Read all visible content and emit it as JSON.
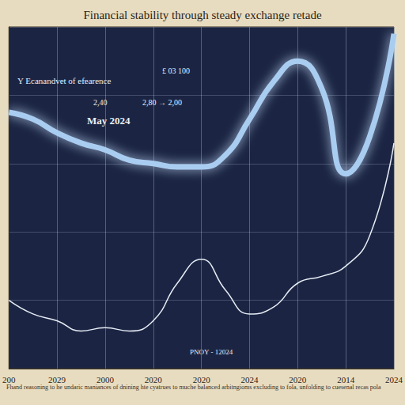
{
  "chart_data": {
    "type": "line",
    "title": "Financial stability through steady exchange retade",
    "annotations": [
      "Y Ecanandvet of efearence",
      "£ 03 100",
      "May 2024",
      "2,40",
      "2,80 → 2,00",
      "PNOY - 12024"
    ],
    "caption": "Fhand reasoning to he undaric maniances of dnining hte cyatrues to muche balanced arbitngioms excluding to fola, unfolding to cuesenal recas pola",
    "categories": [
      "200",
      null,
      "2029",
      null,
      "2000",
      null,
      "2020",
      null,
      "2020",
      null,
      "2024",
      null,
      "2020",
      null,
      "2014",
      null,
      "2024"
    ],
    "series": [
      {
        "color": "#a9cdf0",
        "line_style": "solid",
        "values": [
          7.5,
          7.3,
          6.9,
          6.6,
          6.4,
          6.1,
          6.0,
          5.9,
          5.9,
          6.25,
          7.3,
          8.4,
          9.0,
          8.2,
          5.7,
          6.8,
          9.8
        ]
      },
      {
        "color": "#e6ecf5",
        "line_style": "solid",
        "values": [
          2.0,
          1.6,
          1.4,
          1.1,
          1.2,
          1.1,
          1.4,
          2.5,
          3.2,
          2.3,
          1.6,
          1.8,
          2.5,
          2.7,
          3.0,
          3.9,
          6.6
        ]
      }
    ],
    "ylim": [
      0,
      10
    ],
    "yticks": [
      0,
      2,
      4,
      6,
      8,
      10
    ],
    "grid": true,
    "tick_labels": "x"
  }
}
